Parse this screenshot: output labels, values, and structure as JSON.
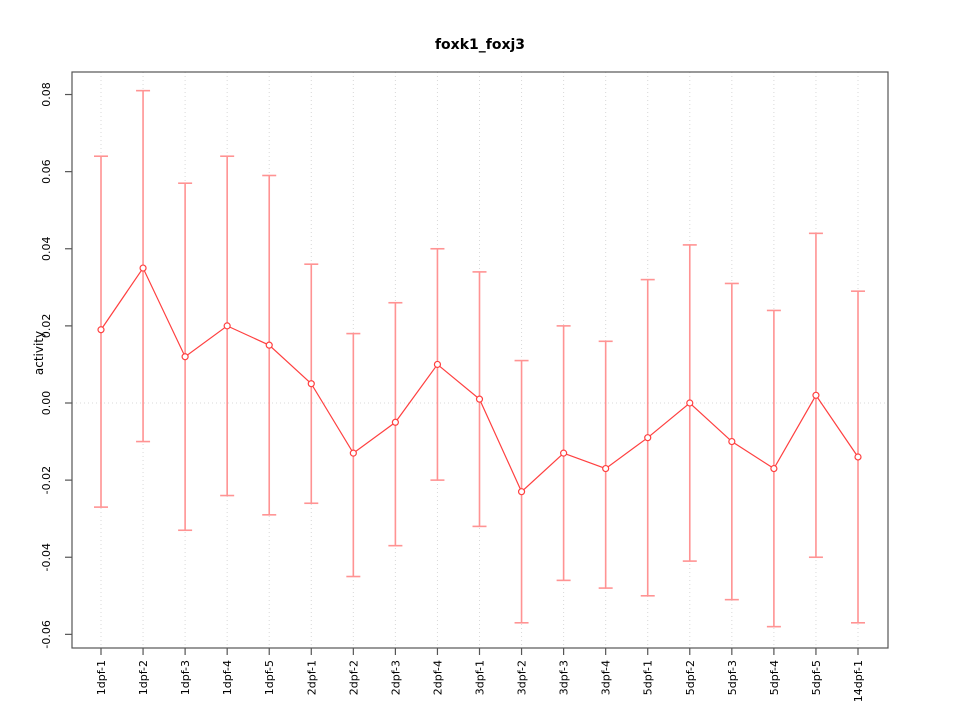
{
  "chart_data": {
    "type": "line",
    "title": "foxk1_foxj3",
    "xlabel": "",
    "ylabel": "activity",
    "legend": "none",
    "point_style": "open-circle",
    "grid": "vertical-dotted-per-category",
    "zero_line": "dotted-horizontal-at-0",
    "ylim": [
      -0.06,
      0.08
    ],
    "ytick_labels": [
      "0.08",
      "0.06",
      "0.04",
      "0.02",
      "0.00",
      "-0.02",
      "-0.04",
      "-0.06"
    ],
    "categories": [
      "1dpf-1",
      "1dpf-2",
      "1dpf-3",
      "1dpf-4",
      "1dpf-5",
      "2dpf-1",
      "2dpf-2",
      "2dpf-3",
      "2dpf-4",
      "3dpf-1",
      "3dpf-2",
      "3dpf-3",
      "3dpf-4",
      "5dpf-1",
      "5dpf-2",
      "5dpf-3",
      "5dpf-4",
      "5dpf-5",
      "14dpf-1"
    ],
    "series": [
      {
        "name": "activity",
        "values": [
          0.019,
          0.035,
          0.012,
          0.02,
          0.015,
          0.005,
          -0.013,
          -0.005,
          0.01,
          0.001,
          -0.023,
          -0.013,
          -0.017,
          -0.009,
          0.0,
          -0.01,
          -0.017,
          0.002,
          -0.014
        ],
        "error_high": [
          0.064,
          0.081,
          0.057,
          0.064,
          0.059,
          0.036,
          0.018,
          0.026,
          0.04,
          0.034,
          0.011,
          0.02,
          0.016,
          0.032,
          0.041,
          0.031,
          0.024,
          0.044,
          0.029
        ],
        "error_low": [
          -0.027,
          -0.01,
          -0.033,
          -0.024,
          -0.029,
          -0.026,
          -0.045,
          -0.037,
          -0.02,
          -0.032,
          -0.057,
          -0.046,
          -0.048,
          -0.05,
          -0.041,
          -0.051,
          -0.058,
          -0.04,
          -0.057
        ]
      }
    ],
    "colors": {
      "series": "#ff4040",
      "error_bar": "#ff9393",
      "grid": "#d8d8d8",
      "axis_box": "#555555",
      "text": "#000000",
      "background": "#ffffff"
    }
  }
}
